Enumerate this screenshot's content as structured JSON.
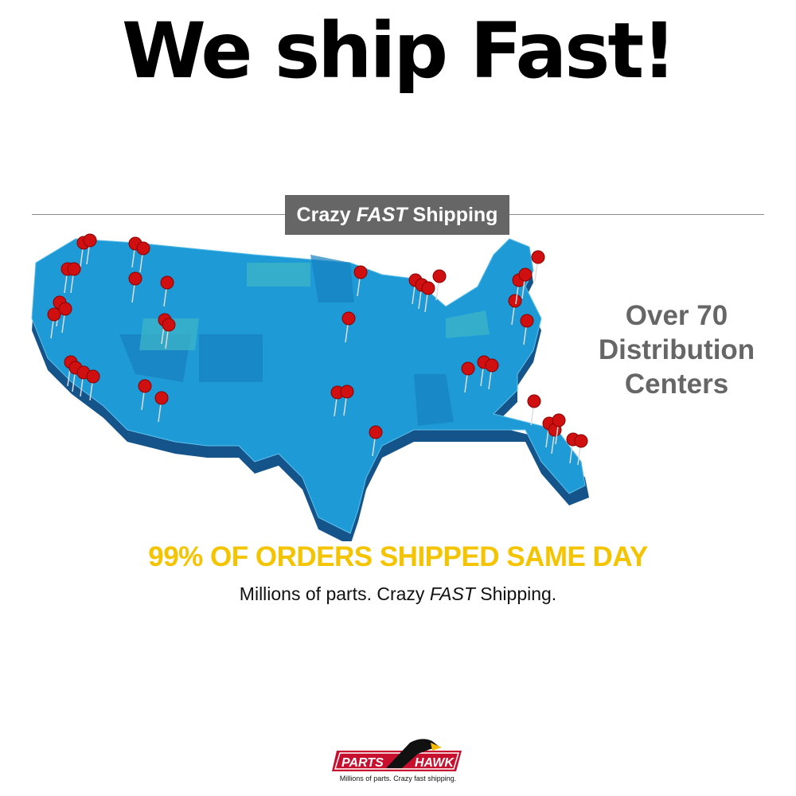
{
  "headline": "We ship Fast!",
  "badge": {
    "pre": "Crazy",
    "emph": "FAST",
    "post": "Shipping"
  },
  "side_text": [
    "Over 70",
    "Distribution",
    "Centers"
  ],
  "stat": "99% OF ORDERS SHIPPED SAME DAY",
  "tagline": {
    "pre": "Millions of parts. Crazy",
    "emph": "FAST",
    "post": "Shipping."
  },
  "logo": {
    "word1": "PARTS",
    "word2": "HAWK",
    "tagline": "Millions of parts. Crazy fast shipping."
  },
  "colors": {
    "map": "#1e9ad6",
    "pin": "#d01010",
    "stat": "#f5c400",
    "badge": "#666666"
  },
  "icons": {
    "pin": "map-pin-icon",
    "logo": "hawk-logo"
  }
}
